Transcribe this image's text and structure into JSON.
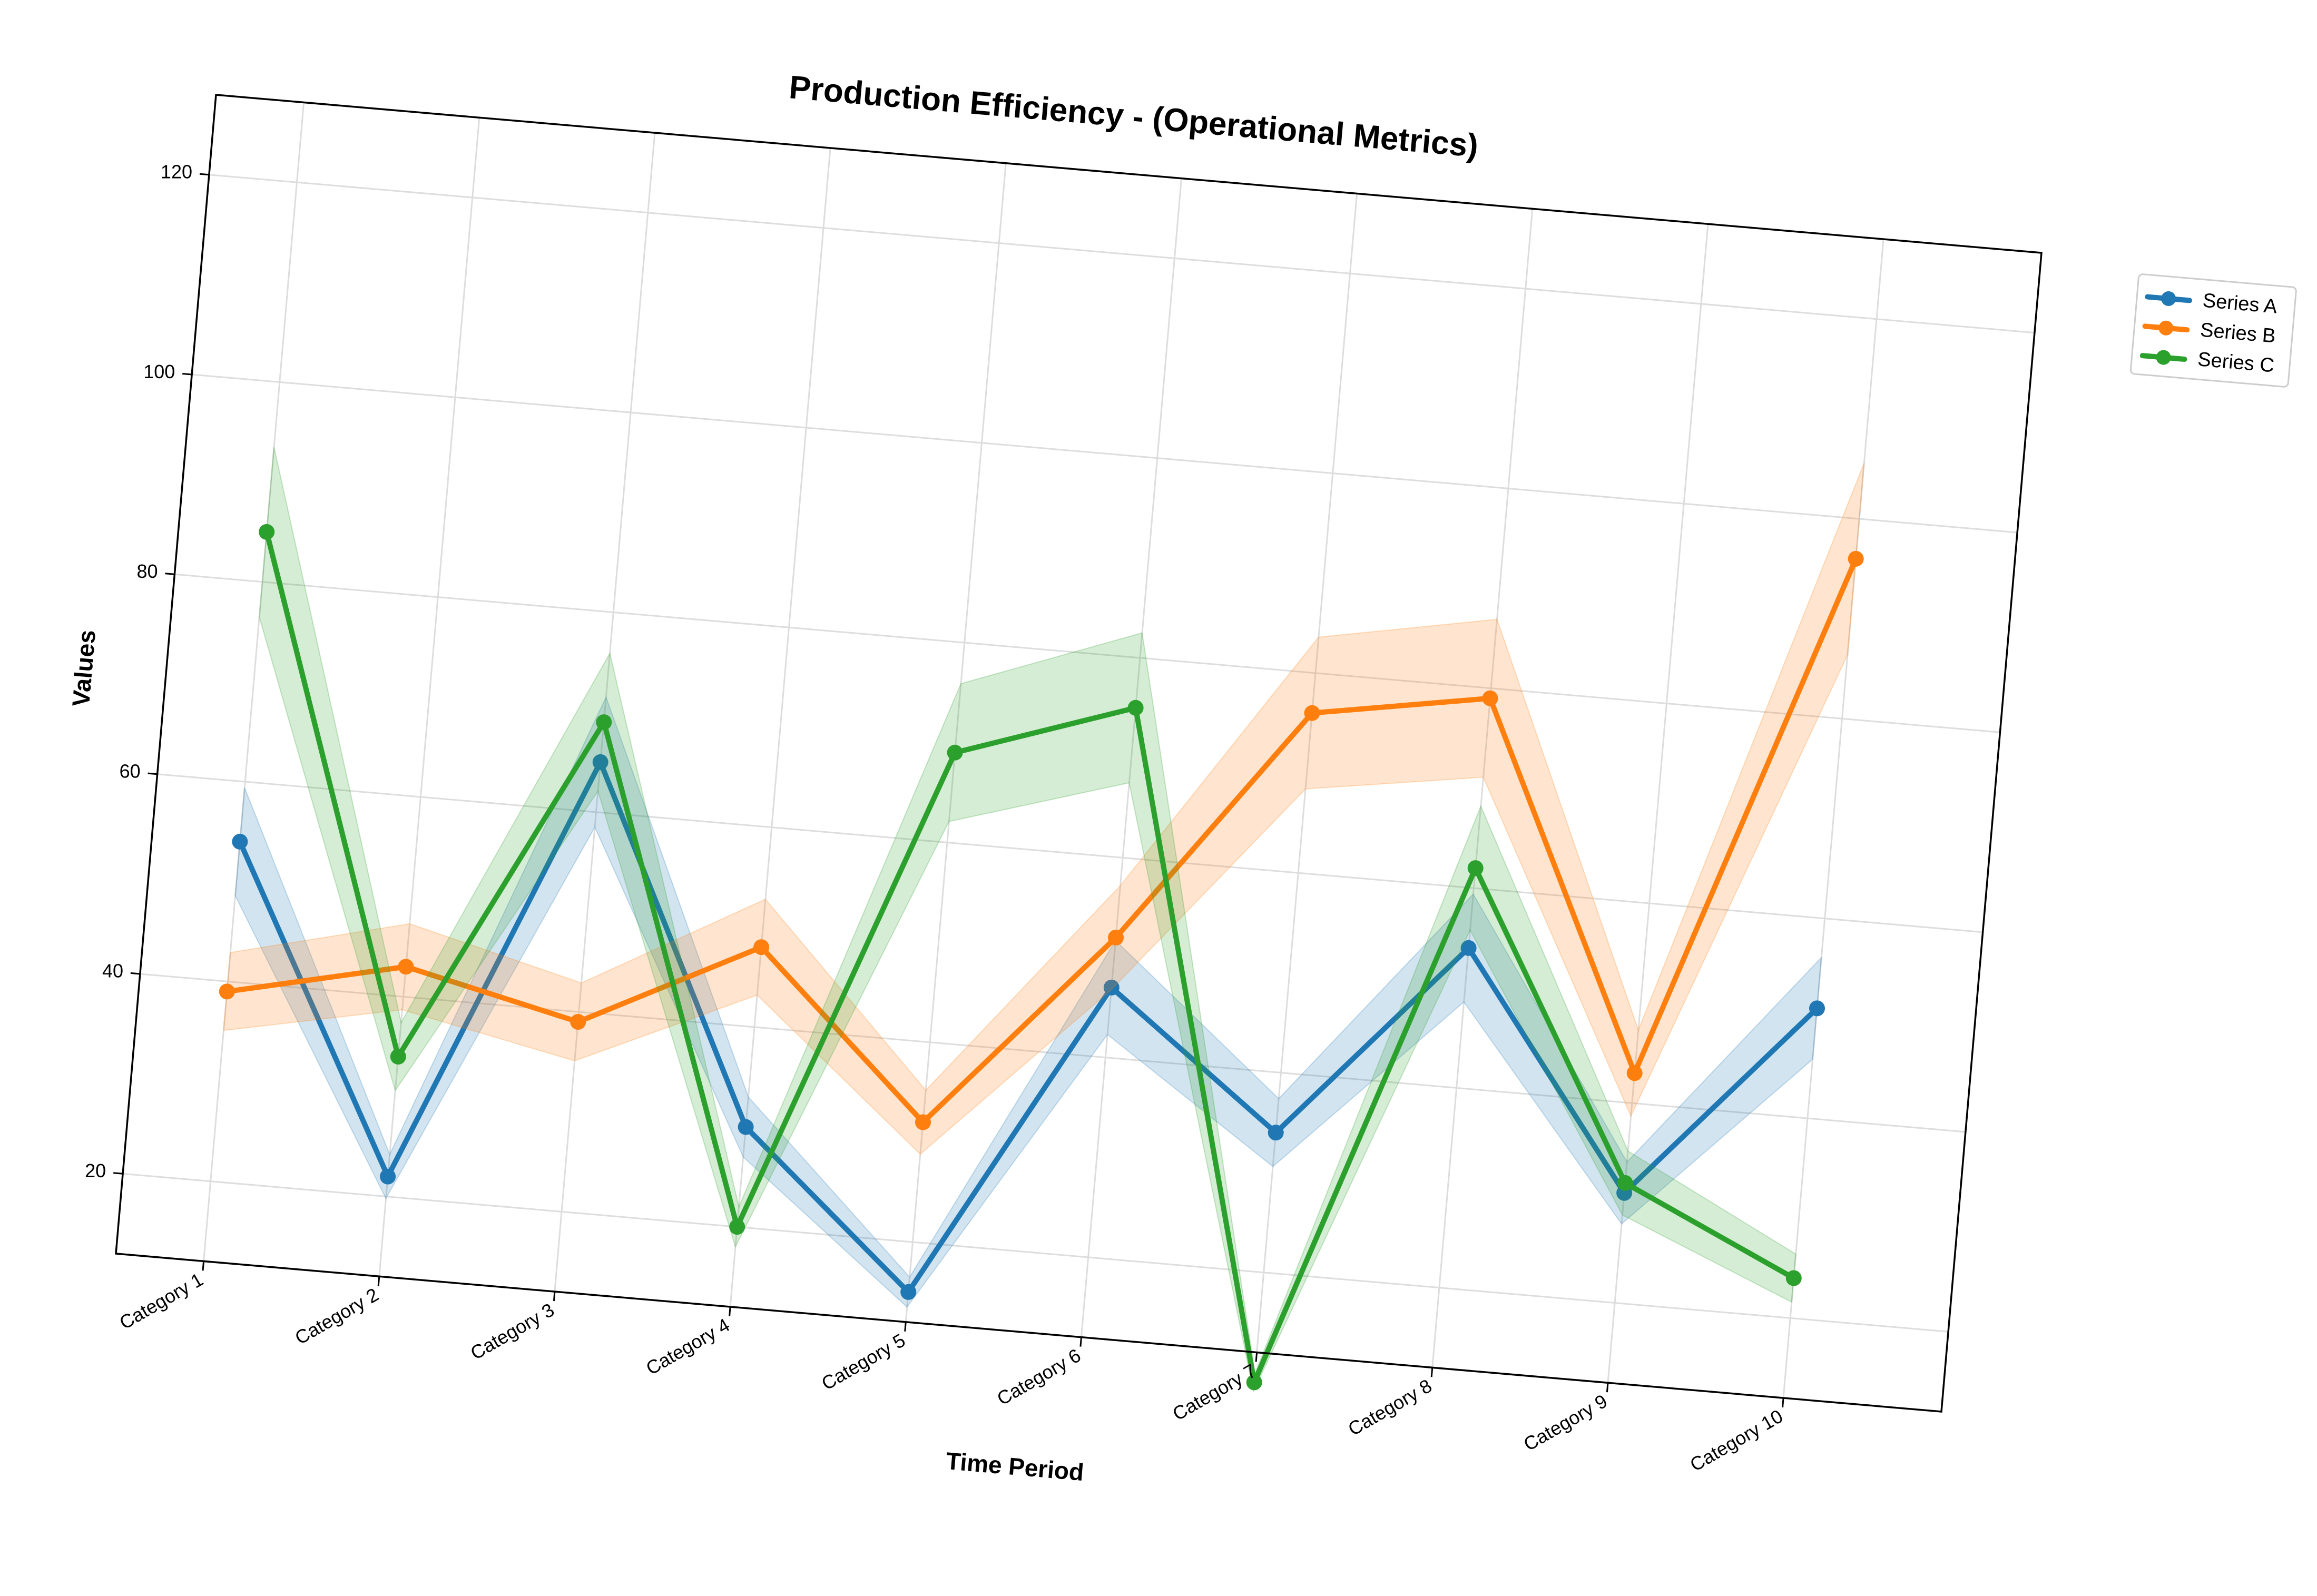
{
  "chart_data": {
    "type": "line",
    "title": "Production Efficiency - (Operational Metrics)",
    "xlabel": "Time Period",
    "ylabel": "Values",
    "categories": [
      "Category 1",
      "Category 2",
      "Category 3",
      "Category 4",
      "Category 5",
      "Category 6",
      "Category 7",
      "Category 8",
      "Category 9",
      "Category 10"
    ],
    "yticks": [
      20,
      40,
      60,
      80,
      100,
      120
    ],
    "ylim": [
      12,
      128
    ],
    "grid": true,
    "legend_position": "outside top-right",
    "band": "shaded band of roughly ±8–12% around each series",
    "series": [
      {
        "name": "Series A",
        "color": "#1f77b4",
        "values": [
          54,
          22,
          65,
          30,
          15,
          47,
          34,
          54,
          31,
          51
        ],
        "lower": [
          48.6,
          19.8,
          58.5,
          27.0,
          13.5,
          42.3,
          30.6,
          48.6,
          27.9,
          45.9
        ],
        "upper": [
          59.4,
          24.2,
          71.5,
          33.0,
          16.5,
          51.7,
          37.4,
          59.4,
          34.1,
          56.1
        ]
      },
      {
        "name": "Series B",
        "color": "#ff7f0e",
        "values": [
          39,
          43,
          39,
          48,
          32,
          52,
          76,
          79,
          43,
          96
        ],
        "lower": [
          35.1,
          38.7,
          35.1,
          43.2,
          28.8,
          46.8,
          68.4,
          71.1,
          38.7,
          86.4
        ],
        "upper": [
          42.9,
          47.3,
          42.9,
          52.8,
          35.2,
          57.2,
          83.6,
          86.9,
          47.3,
          105.6
        ]
      },
      {
        "name": "Series C",
        "color": "#2ca02c",
        "values": [
          85,
          34,
          69,
          20,
          69,
          75,
          9,
          62,
          32,
          24
        ],
        "lower": [
          76.5,
          30.6,
          62.1,
          18.0,
          62.1,
          67.5,
          8.1,
          55.8,
          28.8,
          21.6
        ],
        "upper": [
          93.5,
          37.4,
          75.9,
          22.0,
          75.9,
          82.5,
          9.9,
          68.2,
          35.2,
          26.4
        ]
      }
    ]
  }
}
